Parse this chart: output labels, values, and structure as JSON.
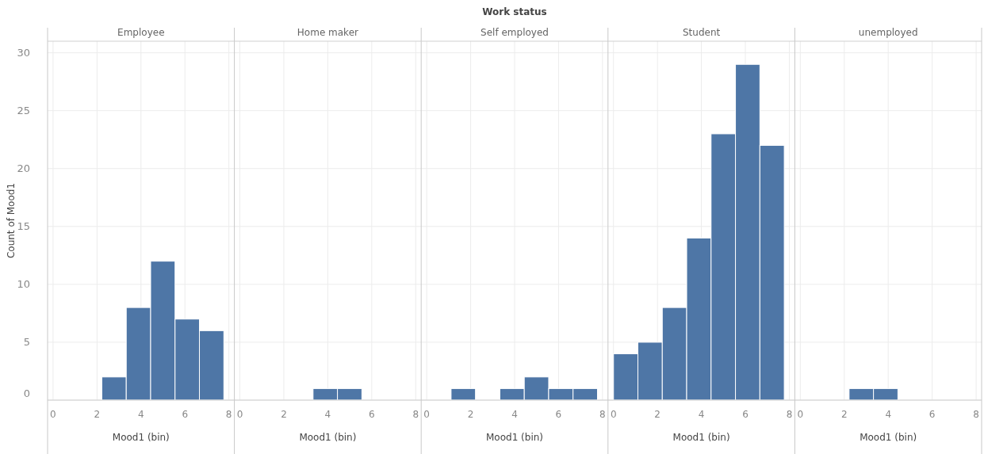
{
  "chart_data": [
    {
      "type": "histogram",
      "title": "Employee",
      "annotations": [
        "Work status"
      ],
      "xlabel": "Mood1 (bin)",
      "ylabel": "Count of Mood1",
      "bins": [
        2.22,
        3.33,
        4.44,
        5.55,
        6.66,
        7.77
      ],
      "values": [
        2,
        8,
        12,
        7,
        6
      ],
      "color": "#4e76a6",
      "xlim": [
        -0.25,
        8.25
      ],
      "xticks": [
        0,
        2,
        4,
        6,
        8
      ],
      "ylim": [
        0,
        31
      ],
      "yticks": [
        0,
        5,
        10,
        15,
        20,
        25,
        30
      ],
      "grid": true
    },
    {
      "type": "histogram",
      "title": "Home maker",
      "xlabel": "Mood1 (bin)",
      "bins": [
        3.33,
        4.44,
        5.55
      ],
      "values": [
        1,
        1
      ],
      "color": "#4e76a6",
      "xlim": [
        -0.25,
        8.25
      ],
      "xticks": [
        0,
        2,
        4,
        6,
        8
      ],
      "ylim": [
        0,
        31
      ],
      "yticks": [
        0,
        5,
        10,
        15,
        20,
        25,
        30
      ],
      "grid": true,
      "tick_labels": "x"
    },
    {
      "type": "histogram",
      "title": "Self employed",
      "xlabel": "Mood1 (bin)",
      "bins": [
        1.11,
        2.22,
        3.33,
        4.44,
        5.55,
        6.66,
        7.77
      ],
      "values": [
        1,
        0,
        1,
        2,
        1,
        1
      ],
      "color": "#4e76a6",
      "xlim": [
        -0.25,
        8.25
      ],
      "xticks": [
        0,
        2,
        4,
        6,
        8
      ],
      "ylim": [
        0,
        31
      ],
      "yticks": [
        0,
        5,
        10,
        15,
        20,
        25,
        30
      ],
      "grid": true,
      "tick_labels": "x"
    },
    {
      "type": "histogram",
      "title": "Student",
      "xlabel": "Mood1 (bin)",
      "bins": [
        0,
        1.11,
        2.22,
        3.33,
        4.44,
        5.55,
        6.66,
        7.77
      ],
      "values": [
        4,
        5,
        8,
        14,
        23,
        29,
        22
      ],
      "color": "#4e76a6",
      "xlim": [
        -0.25,
        8.25
      ],
      "xticks": [
        0,
        2,
        4,
        6,
        8
      ],
      "ylim": [
        0,
        31
      ],
      "yticks": [
        0,
        5,
        10,
        15,
        20,
        25,
        30
      ],
      "grid": true,
      "tick_labels": "x"
    },
    {
      "type": "histogram",
      "title": "unemployed",
      "xlabel": "Mood1 (bin)",
      "bins": [
        2.22,
        3.33,
        4.44
      ],
      "values": [
        1,
        1
      ],
      "color": "#4e76a6",
      "xlim": [
        -0.25,
        8.25
      ],
      "xticks": [
        0,
        2,
        4,
        6,
        8
      ],
      "ylim": [
        0,
        31
      ],
      "yticks": [
        0,
        5,
        10,
        15,
        20,
        25,
        30
      ],
      "grid": true,
      "tick_labels": "x"
    }
  ]
}
